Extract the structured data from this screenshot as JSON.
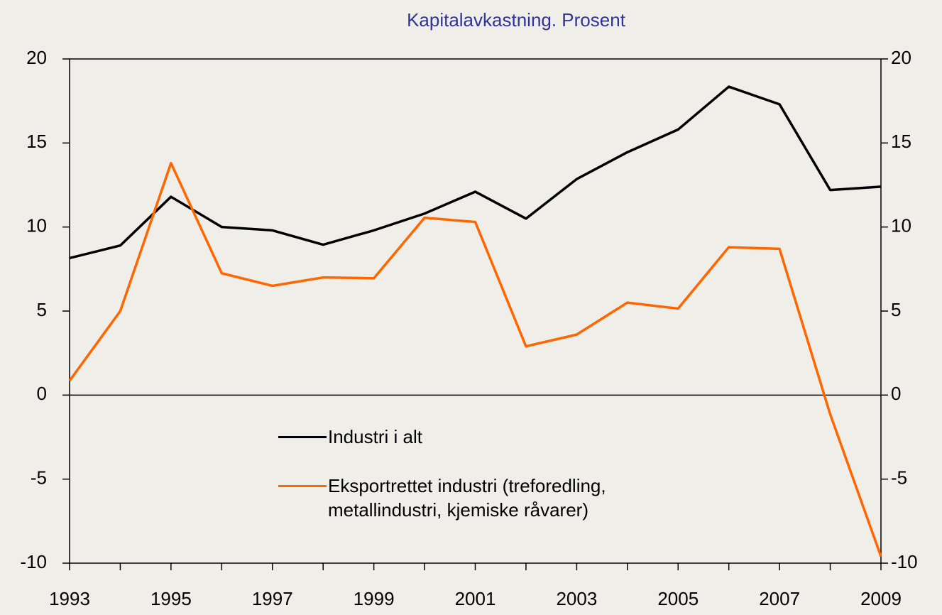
{
  "chart_data": {
    "type": "line",
    "title": "Kapitalavkastning.  Prosent",
    "categories": [
      "1993",
      null,
      "1995",
      null,
      "1997",
      null,
      "1999",
      null,
      "2001",
      null,
      "2003",
      null,
      "2005",
      null,
      "2007",
      null,
      "2009"
    ],
    "series": [
      {
        "name": "Industri i alt",
        "color": "#000000",
        "values": [
          8.15,
          8.9,
          11.8,
          10.0,
          9.8,
          8.95,
          9.8,
          10.8,
          12.1,
          10.5,
          12.85,
          14.45,
          15.8,
          18.35,
          17.3,
          12.2,
          12.4
        ]
      },
      {
        "name": "Eksportrettet industri (treforedling,\nmetallindustri, kjemiske råvarer)",
        "color": "#ff6600",
        "values": [
          0.85,
          5.0,
          13.8,
          7.25,
          6.5,
          7.0,
          6.95,
          10.55,
          10.3,
          2.9,
          3.6,
          5.5,
          5.15,
          8.8,
          8.7,
          -1.15,
          -9.6
        ]
      }
    ],
    "ylim": [
      -10,
      20
    ],
    "yticks": [
      -10,
      -5,
      0,
      5,
      10,
      15,
      20
    ],
    "y2lim": [
      -10,
      20
    ],
    "y2ticks": [
      -10,
      -5,
      0,
      5,
      10,
      15,
      20
    ]
  }
}
